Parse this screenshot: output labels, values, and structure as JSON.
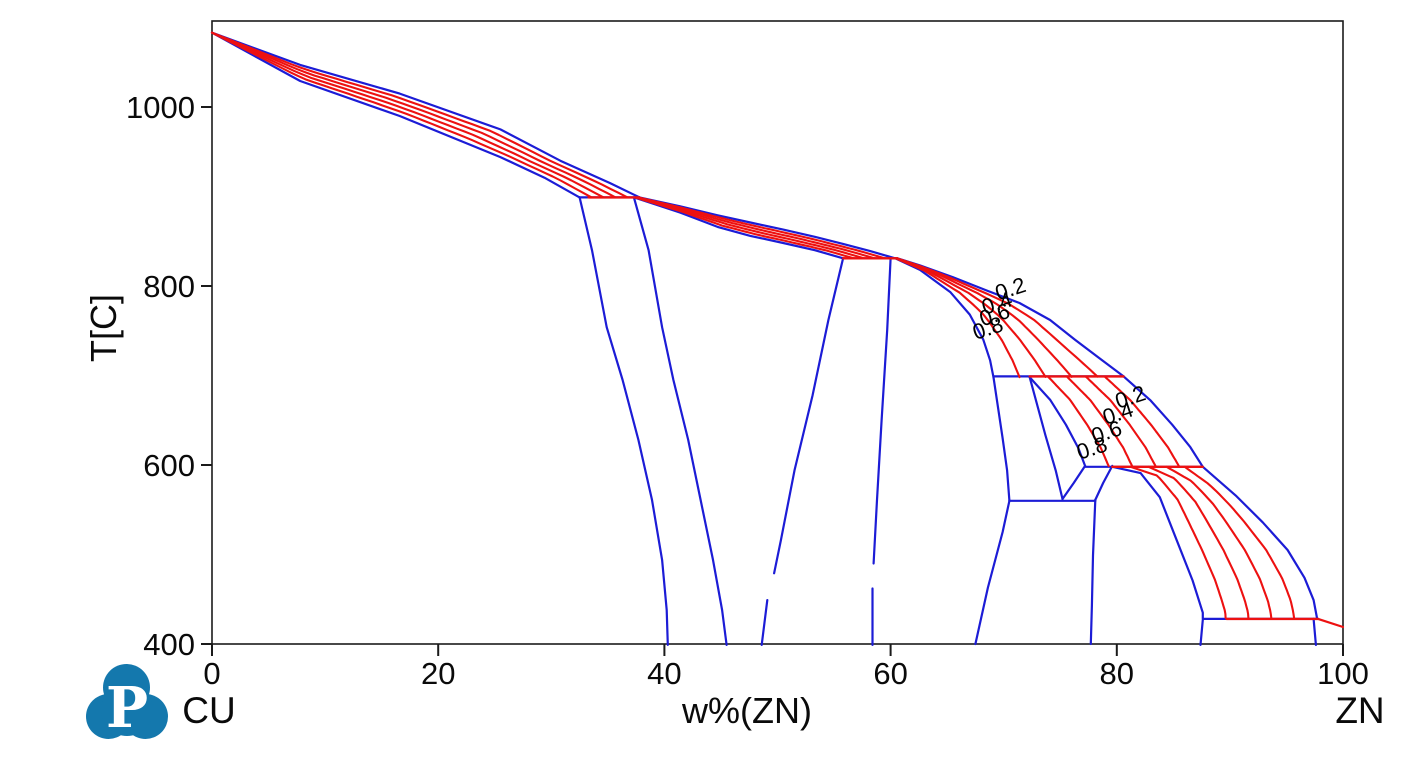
{
  "logo": {
    "letter": "P",
    "color": "#1478ad"
  },
  "chart_data": {
    "type": "line",
    "description": "Cu-Zn binary phase diagram, temperature vs weight percent Zn, with blue phase boundaries and red phase-fraction lines",
    "xlabel": "w%(ZN)",
    "ylabel": "T[C]",
    "x_left_label": "CU",
    "x_right_label": "ZN",
    "xlim": [
      0,
      100
    ],
    "ylim": [
      400,
      1096
    ],
    "x_ticks": [
      0,
      20,
      40,
      60,
      80,
      100
    ],
    "y_ticks": [
      400,
      600,
      800,
      1000
    ],
    "grid": false,
    "legend": "none",
    "boundary_color": "#1c1cd6",
    "fraction_color": "#ed1111",
    "frame_color": "#1a1a1a",
    "boundaries": [
      {
        "name": "fcc-solidus",
        "points": [
          [
            0,
            1083
          ],
          [
            7.8,
            1029
          ],
          [
            16.6,
            990
          ],
          [
            25.5,
            944
          ],
          [
            29.4,
            921
          ],
          [
            32.5,
            899
          ]
        ]
      },
      {
        "name": "fcc-liquidus",
        "points": [
          [
            0,
            1083
          ],
          [
            7.8,
            1047
          ],
          [
            16.6,
            1015
          ],
          [
            25.5,
            975
          ],
          [
            30.8,
            940
          ],
          [
            35.2,
            915
          ],
          [
            37.8,
            899
          ]
        ]
      },
      {
        "name": "fcc-solvus",
        "points": [
          [
            32.5,
            899
          ],
          [
            33.6,
            840
          ],
          [
            34.9,
            754
          ],
          [
            36.3,
            695
          ],
          [
            37.7,
            628
          ],
          [
            38.9,
            561
          ],
          [
            39.8,
            494
          ],
          [
            40.2,
            438
          ],
          [
            40.3,
            399
          ]
        ]
      },
      {
        "name": "beta-left-solvus",
        "points": [
          [
            37.3,
            899
          ],
          [
            38.6,
            840
          ],
          [
            39.8,
            754
          ],
          [
            40.8,
            695
          ],
          [
            42.1,
            628
          ],
          [
            43.2,
            561
          ],
          [
            44.3,
            494
          ],
          [
            45.1,
            438
          ],
          [
            45.5,
            399
          ]
        ]
      },
      {
        "name": "beta-solidus",
        "points": [
          [
            37.3,
            899
          ],
          [
            41.4,
            882
          ],
          [
            44.7,
            866
          ],
          [
            47.6,
            856
          ],
          [
            50.5,
            848
          ],
          [
            53.3,
            840
          ],
          [
            55.8,
            831
          ]
        ]
      },
      {
        "name": "beta-liquidus",
        "points": [
          [
            37.8,
            899
          ],
          [
            41.4,
            889
          ],
          [
            44.7,
            879
          ],
          [
            47.6,
            871
          ],
          [
            50.5,
            863
          ],
          [
            53.3,
            855
          ],
          [
            55.8,
            847
          ],
          [
            58.2,
            839
          ],
          [
            60.4,
            831
          ]
        ]
      },
      {
        "name": "beta-right-solvus-upper",
        "points": [
          [
            55.8,
            831
          ],
          [
            54.5,
            762
          ],
          [
            53.1,
            678
          ],
          [
            51.5,
            594
          ],
          [
            50.3,
            516
          ],
          [
            49.7,
            479
          ]
        ]
      },
      {
        "name": "beta-right-solvus-lower",
        "points": [
          [
            49.1,
            449
          ],
          [
            48.6,
            399
          ]
        ]
      },
      {
        "name": "gamma-left-upper",
        "points": [
          [
            60.0,
            831
          ],
          [
            59.7,
            751
          ],
          [
            59.2,
            650
          ],
          [
            58.8,
            561
          ],
          [
            58.5,
            490
          ]
        ]
      },
      {
        "name": "gamma-left-lower",
        "points": [
          [
            58.4,
            462
          ],
          [
            58.4,
            399
          ]
        ]
      },
      {
        "name": "gamma-right-upper",
        "points": [
          [
            60.4,
            831
          ],
          [
            62.6,
            818
          ],
          [
            65.3,
            793
          ],
          [
            67.0,
            768
          ],
          [
            68.2,
            740
          ],
          [
            68.8,
            717
          ],
          [
            69.1,
            698
          ]
        ]
      },
      {
        "name": "gamma-liquidus",
        "points": [
          [
            60.6,
            831
          ],
          [
            62.6,
            823
          ],
          [
            65.5,
            810
          ],
          [
            68.5,
            795
          ],
          [
            71.4,
            781
          ],
          [
            74.1,
            762
          ],
          [
            76.3,
            740
          ],
          [
            78.5,
            719
          ],
          [
            80.6,
            699
          ]
        ]
      },
      {
        "name": "gamma-solvus-mid",
        "points": [
          [
            69.1,
            698
          ],
          [
            69.9,
            630
          ],
          [
            70.3,
            594
          ],
          [
            70.5,
            560
          ]
        ]
      },
      {
        "name": "gamma-solvus-low",
        "points": [
          [
            70.5,
            560
          ],
          [
            69.9,
            525
          ],
          [
            68.6,
            463
          ],
          [
            67.5,
            400
          ]
        ]
      },
      {
        "name": "delta-left",
        "points": [
          [
            72.3,
            698
          ],
          [
            73.7,
            633
          ],
          [
            74.6,
            594
          ],
          [
            75.2,
            562
          ]
        ]
      },
      {
        "name": "delta-solidus",
        "points": [
          [
            72.3,
            698
          ],
          [
            74.1,
            673
          ],
          [
            75.5,
            645
          ],
          [
            76.6,
            619
          ],
          [
            77.2,
            599
          ]
        ]
      },
      {
        "name": "delta-lower-right",
        "points": [
          [
            77.2,
            599
          ],
          [
            76.2,
            580
          ],
          [
            75.2,
            562
          ]
        ]
      },
      {
        "name": "delta-liquidus",
        "points": [
          [
            80.6,
            699
          ],
          [
            83.0,
            672
          ],
          [
            84.9,
            645
          ],
          [
            86.5,
            620
          ],
          [
            87.6,
            598
          ]
        ]
      },
      {
        "name": "epsilon-left-upper",
        "points": [
          [
            79.6,
            599
          ],
          [
            78.8,
            580
          ],
          [
            78.1,
            561
          ]
        ]
      },
      {
        "name": "epsilon-left-lower",
        "points": [
          [
            78.1,
            561
          ],
          [
            77.9,
            499
          ],
          [
            77.8,
            443
          ],
          [
            77.7,
            400
          ]
        ]
      },
      {
        "name": "epsilon-solidus",
        "points": [
          [
            79.6,
            598
          ],
          [
            82.1,
            591
          ],
          [
            83.8,
            564
          ],
          [
            85.3,
            516
          ],
          [
            86.7,
            471
          ],
          [
            87.6,
            435
          ],
          [
            87.6,
            429
          ]
        ]
      },
      {
        "name": "epsilon-liquidus",
        "points": [
          [
            87.6,
            598
          ],
          [
            90.5,
            566
          ],
          [
            92.9,
            536
          ],
          [
            95.1,
            505
          ],
          [
            96.6,
            474
          ],
          [
            97.4,
            449
          ],
          [
            97.7,
            429
          ]
        ]
      },
      {
        "name": "eta-left",
        "points": [
          [
            87.6,
            427
          ],
          [
            87.4,
            399
          ]
        ]
      },
      {
        "name": "eta-right",
        "points": [
          [
            97.4,
            428
          ],
          [
            97.6,
            399
          ]
        ]
      },
      {
        "name": "liquidus-zn-tail",
        "color": "red",
        "points": [
          [
            97.8,
            428
          ],
          [
            100,
            419
          ]
        ]
      }
    ],
    "invariant_lines": [
      {
        "name": "peritectic-L-fcc-beta",
        "T": 899,
        "blue": [
          32.5,
          37.8
        ],
        "red": [
          33.3,
          37.8
        ]
      },
      {
        "name": "peritectic-L-beta-gamma",
        "T": 831,
        "blue": [
          55.8,
          60.6
        ],
        "red": [
          55.8,
          60.6
        ]
      },
      {
        "name": "peritectic-L-gamma-delta",
        "T": 699,
        "blue": [
          69.1,
          80.6
        ],
        "red": [
          72.3,
          80.6
        ]
      },
      {
        "name": "peritectic-L-delta-epsilon",
        "T": 598,
        "blue": [
          77.2,
          87.6
        ],
        "red": [
          79.6,
          87.6
        ]
      },
      {
        "name": "eutectoid-delta-gamma-epsilon",
        "T": 560,
        "blue": [
          70.5,
          78.1
        ]
      },
      {
        "name": "peritectic-L-epsilon-eta",
        "T": 428,
        "blue": [
          87.6,
          97.8
        ],
        "red": [
          89.7,
          97.8
        ]
      }
    ],
    "two_phase_regions": [
      {
        "name": "L+fcc",
        "solid": "fcc-solidus",
        "liquid": "fcc-liquidus",
        "fractions": [
          0.2,
          0.4,
          0.6,
          0.8
        ]
      },
      {
        "name": "L+beta",
        "solid": "beta-solidus",
        "liquid": "beta-liquidus",
        "fractions": [
          0.2,
          0.4,
          0.6,
          0.8
        ]
      },
      {
        "name": "L+gamma",
        "solid": "gamma-right-upper",
        "liquid": "gamma-liquidus",
        "fractions": [
          0.2,
          0.4,
          0.6,
          0.8
        ]
      },
      {
        "name": "L+delta",
        "solid": "delta-solidus",
        "liquid": "delta-liquidus",
        "fractions": [
          0.2,
          0.4,
          0.6,
          0.8
        ]
      },
      {
        "name": "L+epsilon",
        "solid": "epsilon-solidus",
        "liquid": "epsilon-liquidus",
        "fractions": [
          0.2,
          0.4,
          0.6,
          0.8
        ]
      }
    ],
    "fraction_labels": [
      {
        "text": "0.2",
        "w": 70.8,
        "T": 789
      },
      {
        "text": "0.4",
        "w": 69.6,
        "T": 773
      },
      {
        "text": "0.6",
        "w": 69.4,
        "T": 760
      },
      {
        "text": "0.8",
        "w": 68.8,
        "T": 745
      },
      {
        "text": "0.2",
        "w": 81.4,
        "T": 668
      },
      {
        "text": "0.4",
        "w": 80.3,
        "T": 650
      },
      {
        "text": "0.6",
        "w": 79.3,
        "T": 629
      },
      {
        "text": "0.8",
        "w": 78.0,
        "T": 611
      }
    ]
  }
}
